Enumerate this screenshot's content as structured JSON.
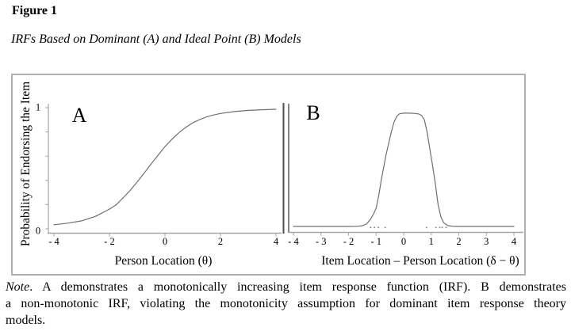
{
  "header": {
    "figure_label": "Figure 1",
    "figure_title": "IRFs Based on Dominant (A) and Ideal Point (B) Models"
  },
  "note": {
    "prefix": "Note",
    "line1": ". A demonstrates a monotonically increasing item response function (IRF). B demonstrates",
    "line2": "a non-monotonic IRF, violating the monotonicity assumption for dominant item response theory",
    "line3": "models."
  },
  "colors": {
    "axis": "#a6a6a6",
    "curve": "#6f6f6f",
    "divider": "#4e4e4e",
    "scatter_dots": "#8c8c8c",
    "box_border": "#b0b0b0",
    "text": "#000000"
  },
  "chart_data": [
    {
      "id": "panel-a",
      "type": "line",
      "panel_label": "A",
      "xlabel": "Person Location (θ)",
      "ylabel": "Probability of Endorsing the Item",
      "xlim": [
        -4,
        4
      ],
      "ylim": [
        0,
        1
      ],
      "grid": "off",
      "xticks": [
        {
          "v": -4,
          "label": "- 4"
        },
        {
          "v": -2,
          "label": "- 2"
        },
        {
          "v": 0,
          "label": "0"
        },
        {
          "v": 2,
          "label": "2"
        },
        {
          "v": 4,
          "label": "4"
        }
      ],
      "yticks": [
        0,
        0.2,
        0.4,
        0.6,
        0.8,
        1
      ],
      "ytick_labels": [
        {
          "v": 1,
          "label": "1"
        },
        {
          "v": 0,
          "label": "0"
        }
      ],
      "curve_description": "monotonically increasing logistic IRF",
      "curve": [
        [
          -4,
          0.034
        ],
        [
          -3.5,
          0.047
        ],
        [
          -3,
          0.066
        ],
        [
          -2.5,
          0.103
        ],
        [
          -2,
          0.163
        ],
        [
          -1.75,
          0.2
        ],
        [
          -1.5,
          0.258
        ],
        [
          -1.25,
          0.318
        ],
        [
          -1,
          0.387
        ],
        [
          -0.75,
          0.46
        ],
        [
          -0.5,
          0.535
        ],
        [
          -0.25,
          0.608
        ],
        [
          0,
          0.679
        ],
        [
          0.25,
          0.74
        ],
        [
          0.5,
          0.793
        ],
        [
          0.75,
          0.838
        ],
        [
          1,
          0.875
        ],
        [
          1.25,
          0.902
        ],
        [
          1.5,
          0.924
        ],
        [
          1.75,
          0.94
        ],
        [
          2,
          0.952
        ],
        [
          2.5,
          0.968
        ],
        [
          3,
          0.978
        ],
        [
          3.5,
          0.983
        ],
        [
          4,
          0.987
        ]
      ]
    },
    {
      "id": "panel-b",
      "type": "line",
      "panel_label": "B",
      "xlabel": "Item Location – Person Location (δ − θ)",
      "xlim": [
        -4,
        4
      ],
      "ylim": [
        0,
        1
      ],
      "grid": "off",
      "xticks": [
        {
          "v": -4,
          "label": "- 4"
        },
        {
          "v": -3,
          "label": "- 3"
        },
        {
          "v": -2,
          "label": "- 2"
        },
        {
          "v": -1,
          "label": "- 1"
        },
        {
          "v": 0,
          "label": "0"
        },
        {
          "v": 1,
          "label": "1"
        },
        {
          "v": 2,
          "label": "2"
        },
        {
          "v": 3,
          "label": "3"
        },
        {
          "v": 4,
          "label": "4"
        }
      ],
      "curve_description": "non-monotonic single-peaked ideal point IRF",
      "curve": [
        [
          -4,
          0.02
        ],
        [
          -3,
          0.02
        ],
        [
          -2,
          0.02
        ],
        [
          -1.7,
          0.021
        ],
        [
          -1.5,
          0.026
        ],
        [
          -1.35,
          0.04
        ],
        [
          -1.2,
          0.08
        ],
        [
          -1.1,
          0.12
        ],
        [
          -1,
          0.17
        ],
        [
          -0.9,
          0.28
        ],
        [
          -0.8,
          0.42
        ],
        [
          -0.73,
          0.5
        ],
        [
          -0.65,
          0.6
        ],
        [
          -0.55,
          0.7
        ],
        [
          -0.45,
          0.8
        ],
        [
          -0.35,
          0.88
        ],
        [
          -0.25,
          0.93
        ],
        [
          -0.15,
          0.95
        ],
        [
          0,
          0.955
        ],
        [
          0.2,
          0.955
        ],
        [
          0.4,
          0.953
        ],
        [
          0.55,
          0.948
        ],
        [
          0.65,
          0.935
        ],
        [
          0.75,
          0.9
        ],
        [
          0.85,
          0.8
        ],
        [
          0.95,
          0.66
        ],
        [
          1.05,
          0.52
        ],
        [
          1.15,
          0.37
        ],
        [
          1.25,
          0.2
        ],
        [
          1.35,
          0.1
        ],
        [
          1.45,
          0.05
        ],
        [
          1.6,
          0.027
        ],
        [
          1.8,
          0.021
        ],
        [
          2,
          0.02
        ],
        [
          3,
          0.02
        ],
        [
          4,
          0.02
        ]
      ],
      "scatter": [
        [
          -1.2,
          0.012
        ],
        [
          -1.06,
          0.012
        ],
        [
          -0.92,
          0.012
        ],
        [
          -0.67,
          0.012
        ],
        [
          0.83,
          0.012
        ],
        [
          1.17,
          0.012
        ],
        [
          1.31,
          0.012
        ],
        [
          1.4,
          0.012
        ],
        [
          1.54,
          0.012
        ]
      ]
    }
  ]
}
